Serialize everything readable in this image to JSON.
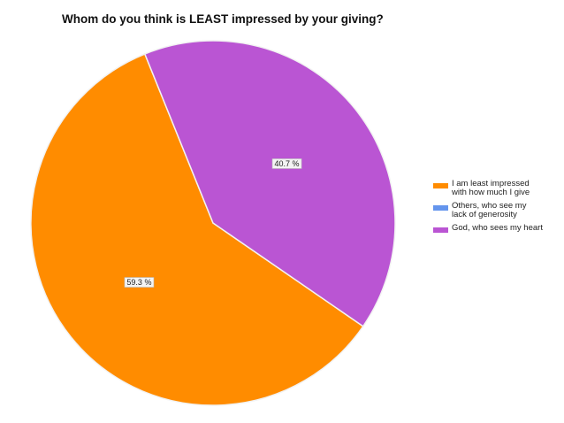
{
  "chart_data": {
    "type": "pie",
    "title": "Whom do you think is LEAST impressed by your giving?",
    "categories": [
      "I am least impressed with how much I give",
      "Others, who see my lack of generosity",
      "God, who sees my heart"
    ],
    "legend_lines": [
      [
        "I am least impressed",
        "with how much I give"
      ],
      [
        "Others, who see my",
        "lack of generosity"
      ],
      [
        "God, who sees my heart"
      ]
    ],
    "values": [
      59.3,
      0,
      40.7
    ],
    "value_labels": [
      "59.3 %",
      "",
      "40.7 %"
    ],
    "colors": [
      "#FF8C00",
      "#6495ED",
      "#BA55D3"
    ],
    "legend_position": "right"
  }
}
